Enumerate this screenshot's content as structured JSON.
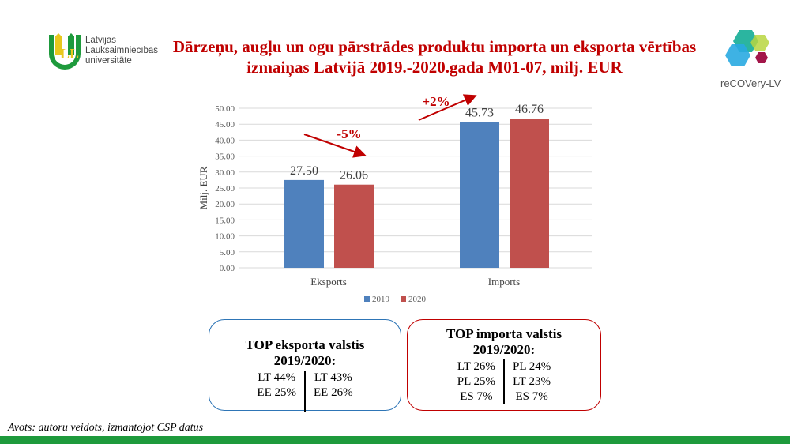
{
  "title": "Dārzeņu, augļu un ogu pārstrādes produktu importa un eksporta vērtības izmaiņas Latvijā 2019.-2020.gada M01-07, milj. EUR",
  "logo_left": {
    "lines": [
      "Latvijas",
      "Lauksaimniecības",
      "universitāte"
    ]
  },
  "logo_right": {
    "text": "reCOVery-LV"
  },
  "chart_data": {
    "type": "bar",
    "categories": [
      "Eksports",
      "Imports"
    ],
    "series": [
      {
        "name": "2019",
        "color": "#4F81BD",
        "values": [
          27.5,
          45.73
        ]
      },
      {
        "name": "2020",
        "color": "#C0504D",
        "values": [
          26.06,
          46.76
        ]
      }
    ],
    "ylabel": "Milj. EUR",
    "ylim": [
      0,
      50
    ],
    "yticks": [
      "0.00",
      "5.00",
      "10.00",
      "15.00",
      "20.00",
      "25.00",
      "30.00",
      "35.00",
      "40.00",
      "45.00",
      "50.00"
    ],
    "data_labels": [
      [
        "27.50",
        "45.73"
      ],
      [
        "26.06",
        "46.76"
      ]
    ],
    "annotations": [
      {
        "text": "-5%",
        "color": "#C00000"
      },
      {
        "text": "+2%",
        "color": "#C00000"
      }
    ],
    "legend": "bottom",
    "grid": true
  },
  "export_box": {
    "title": "TOP eksporta valstis 2019/2020:",
    "left": [
      "LT 44%",
      "EE 25%"
    ],
    "right": [
      "LT 43%",
      "EE 26%"
    ]
  },
  "import_box": {
    "title": "TOP importa valstis 2019/2020:",
    "left": [
      "LT 26%",
      "PL 25%",
      "ES 7%"
    ],
    "right": [
      "PL 24%",
      "LT 23%",
      "ES 7%"
    ]
  },
  "source": "Avots: autoru veidots, izmantojot CSP datus"
}
